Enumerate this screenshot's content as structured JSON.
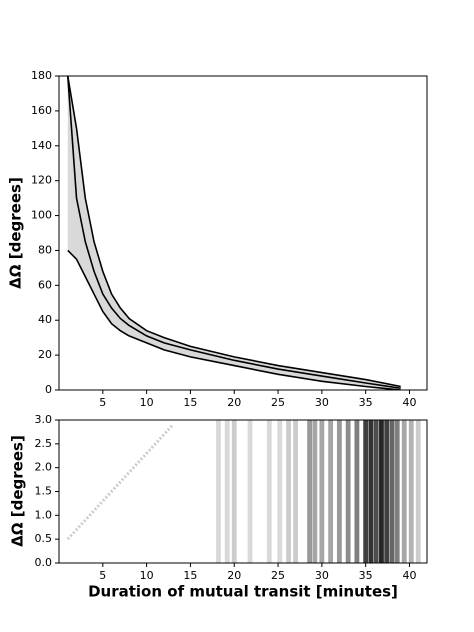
{
  "chart_data": [
    {
      "type": "contour",
      "y_label": "ΔΩ [degrees]",
      "xlim": [
        0,
        42
      ],
      "ylim": [
        0,
        180
      ],
      "xticks": [
        5,
        10,
        15,
        20,
        25,
        30,
        35,
        40
      ],
      "yticks": [
        0,
        20,
        40,
        60,
        80,
        100,
        120,
        140,
        160,
        180
      ],
      "fill_color": "#d9d9d9",
      "series": [
        {
          "color": "#000000",
          "x": [
            1,
            2,
            3,
            4,
            5,
            6,
            7,
            8,
            10,
            12,
            15,
            20,
            25,
            30,
            35,
            39
          ],
          "values": [
            180,
            150,
            110,
            85,
            68,
            55,
            47,
            41,
            34,
            30,
            25,
            19,
            14,
            10,
            6,
            2
          ]
        },
        {
          "color": "#000000",
          "x": [
            1,
            2,
            3,
            4,
            5,
            6,
            7,
            8,
            10,
            12,
            15,
            20,
            25,
            30,
            35,
            39
          ],
          "values": [
            180,
            110,
            85,
            68,
            55,
            47,
            41,
            37,
            31,
            27,
            23,
            17,
            12,
            8,
            4,
            1
          ]
        },
        {
          "color": "#000000",
          "x": [
            1,
            2,
            3,
            4,
            5,
            6,
            7,
            8,
            10,
            12,
            15,
            20,
            25,
            30,
            35,
            39
          ],
          "values": [
            80,
            75,
            65,
            55,
            45,
            38,
            34,
            31,
            27,
            23,
            19,
            14,
            9,
            5,
            2,
            0
          ]
        }
      ]
    },
    {
      "type": "heatmap",
      "x_label": "Duration of mutual transit [minutes]",
      "y_label": "ΔΩ [degrees]",
      "xlim": [
        0,
        42
      ],
      "ylim": [
        0,
        3
      ],
      "xticks": [
        5,
        10,
        15,
        20,
        25,
        30,
        35,
        40
      ],
      "yticks": [
        {
          "value": 0,
          "label": "0.0"
        },
        {
          "value": 0.5,
          "label": "0.5"
        },
        {
          "value": 1,
          "label": "1.0"
        },
        {
          "value": 1.5,
          "label": "1.5"
        },
        {
          "value": 2,
          "label": "2.0"
        },
        {
          "value": 2.5,
          "label": "2.5"
        },
        {
          "value": 3,
          "label": "3.0"
        }
      ],
      "columns": {
        "color": "#000000",
        "x": [
          18.2,
          19.2,
          20,
          21.8,
          24,
          25.2,
          26.2,
          27,
          28.6,
          29.2,
          30,
          31,
          32,
          33,
          34,
          35,
          35.6,
          36.2,
          36.8,
          37.4,
          38,
          38.6,
          39.4,
          40.2,
          41
        ],
        "values": [
          0.15,
          0.15,
          0.2,
          0.15,
          0.15,
          0.15,
          0.2,
          0.2,
          0.4,
          0.35,
          0.35,
          0.35,
          0.4,
          0.45,
          0.5,
          0.75,
          0.8,
          0.7,
          0.85,
          0.75,
          0.6,
          0.5,
          0.35,
          0.3,
          0.2
        ]
      },
      "series": [
        {
          "color": "#cccccc",
          "x": [
            1,
            13
          ],
          "values": [
            0.5,
            2.9
          ]
        }
      ]
    }
  ]
}
